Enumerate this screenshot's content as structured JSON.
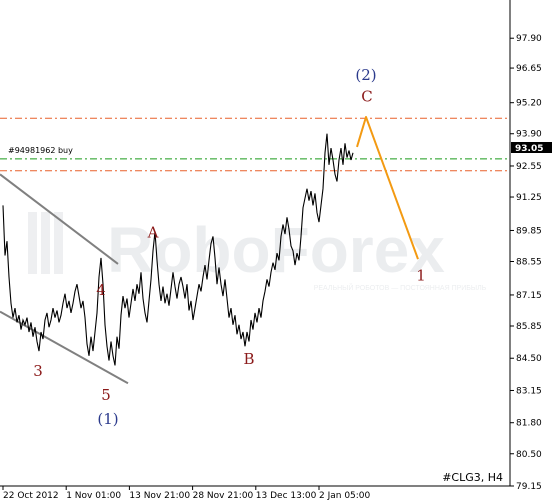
{
  "chart_data": {
    "type": "line",
    "symbol_label": "#CLG3, H4",
    "order_label": "#94981962 buy",
    "current_price": "93.05",
    "watermark": "RoboForex",
    "watermark_sub": "РЕАЛЬНЫЙ РОБОТОВ — ПОСТОЯННАЯ ПРИБЫЛЬ",
    "ylim": [
      79.15,
      99.5
    ],
    "y_ticks": [
      "97.90",
      "96.65",
      "95.20",
      "93.90",
      "92.55",
      "91.25",
      "89.85",
      "88.55",
      "87.15",
      "85.85",
      "84.50",
      "83.15",
      "81.80",
      "80.50",
      "79.15"
    ],
    "x_ticks": [
      "22 Oct 2012",
      "1 Nov 01:00",
      "13 Nov 21:00",
      "28 Nov 21:00",
      "13 Dec 13:00",
      "2 Jan 05:00"
    ],
    "x_range": [
      0,
      515
    ],
    "colors": {
      "price": "#000000",
      "resistance": "#e8612c",
      "order": "#1a9a1a",
      "forecast": "#f39a12",
      "channel": "#808080",
      "wave_small": "#8b1a1a",
      "wave_big": "#2b3a8c",
      "price_box": "#000000"
    },
    "resistance_levels": [
      94.55,
      92.35
    ],
    "order_level": 92.85,
    "channel": [
      {
        "from": [
          0,
          92.2
        ],
        "to": [
          118,
          88.45
        ]
      },
      {
        "from": [
          0,
          86.45
        ],
        "to": [
          128,
          83.45
        ]
      }
    ],
    "forecast_path": [
      [
        357,
        93.35
      ],
      [
        366,
        94.6
      ],
      [
        418,
        88.65
      ]
    ],
    "price_series": [
      [
        3,
        90.9
      ],
      [
        5,
        88.8
      ],
      [
        7,
        89.4
      ],
      [
        9,
        87.9
      ],
      [
        11,
        86.8
      ],
      [
        13,
        86.2
      ],
      [
        15,
        86.6
      ],
      [
        17,
        86.0
      ],
      [
        19,
        86.3
      ],
      [
        21,
        85.7
      ],
      [
        23,
        86.1
      ],
      [
        25,
        85.9
      ],
      [
        27,
        86.2
      ],
      [
        29,
        85.6
      ],
      [
        31,
        86.0
      ],
      [
        33,
        85.4
      ],
      [
        35,
        85.8
      ],
      [
        37,
        85.2
      ],
      [
        39,
        84.8
      ],
      [
        41,
        85.6
      ],
      [
        43,
        85.3
      ],
      [
        45,
        86.1
      ],
      [
        47,
        86.4
      ],
      [
        49,
        85.8
      ],
      [
        51,
        86.1
      ],
      [
        53,
        86.6
      ],
      [
        55,
        86.2
      ],
      [
        57,
        86.5
      ],
      [
        59,
        86.0
      ],
      [
        61,
        86.3
      ],
      [
        63,
        86.8
      ],
      [
        65,
        87.2
      ],
      [
        67,
        86.6
      ],
      [
        69,
        86.9
      ],
      [
        71,
        86.4
      ],
      [
        73,
        86.8
      ],
      [
        75,
        87.3
      ],
      [
        77,
        87.6
      ],
      [
        79,
        87.1
      ],
      [
        81,
        86.6
      ],
      [
        83,
        86.9
      ],
      [
        85,
        86.2
      ],
      [
        87,
        85.1
      ],
      [
        89,
        84.6
      ],
      [
        91,
        85.4
      ],
      [
        93,
        84.8
      ],
      [
        95,
        85.6
      ],
      [
        97,
        86.4
      ],
      [
        99,
        87.9
      ],
      [
        101,
        88.7
      ],
      [
        103,
        87.6
      ],
      [
        105,
        85.9
      ],
      [
        107,
        85.0
      ],
      [
        109,
        84.4
      ],
      [
        111,
        85.2
      ],
      [
        113,
        84.6
      ],
      [
        115,
        84.2
      ],
      [
        117,
        85.4
      ],
      [
        119,
        84.9
      ],
      [
        121,
        86.3
      ],
      [
        123,
        87.1
      ],
      [
        125,
        86.6
      ],
      [
        127,
        87.0
      ],
      [
        129,
        86.2
      ],
      [
        131,
        86.8
      ],
      [
        133,
        87.4
      ],
      [
        135,
        86.9
      ],
      [
        137,
        87.6
      ],
      [
        139,
        87.2
      ],
      [
        141,
        88.1
      ],
      [
        143,
        87.0
      ],
      [
        145,
        86.4
      ],
      [
        147,
        86.0
      ],
      [
        149,
        86.9
      ],
      [
        151,
        87.8
      ],
      [
        153,
        89.0
      ],
      [
        155,
        89.8
      ],
      [
        157,
        88.6
      ],
      [
        159,
        87.6
      ],
      [
        161,
        86.9
      ],
      [
        163,
        87.5
      ],
      [
        165,
        86.8
      ],
      [
        167,
        87.2
      ],
      [
        169,
        86.7
      ],
      [
        171,
        87.4
      ],
      [
        173,
        88.1
      ],
      [
        175,
        87.5
      ],
      [
        177,
        87.0
      ],
      [
        179,
        87.6
      ],
      [
        181,
        87.9
      ],
      [
        183,
        87.5
      ],
      [
        185,
        87.0
      ],
      [
        187,
        87.6
      ],
      [
        189,
        86.5
      ],
      [
        191,
        86.9
      ],
      [
        193,
        86.1
      ],
      [
        195,
        86.6
      ],
      [
        197,
        87.1
      ],
      [
        199,
        87.6
      ],
      [
        201,
        87.3
      ],
      [
        203,
        87.9
      ],
      [
        205,
        88.4
      ],
      [
        207,
        87.8
      ],
      [
        209,
        88.6
      ],
      [
        211,
        89.3
      ],
      [
        213,
        89.6
      ],
      [
        215,
        88.7
      ],
      [
        217,
        87.6
      ],
      [
        219,
        88.3
      ],
      [
        221,
        87.6
      ],
      [
        223,
        87.1
      ],
      [
        225,
        87.8
      ],
      [
        227,
        87.0
      ],
      [
        229,
        86.2
      ],
      [
        231,
        86.6
      ],
      [
        233,
        85.9
      ],
      [
        235,
        86.3
      ],
      [
        237,
        85.5
      ],
      [
        239,
        85.9
      ],
      [
        241,
        85.3
      ],
      [
        243,
        85.6
      ],
      [
        245,
        85.0
      ],
      [
        247,
        85.6
      ],
      [
        249,
        85.2
      ],
      [
        251,
        86.1
      ],
      [
        253,
        85.7
      ],
      [
        255,
        86.4
      ],
      [
        257,
        86.0
      ],
      [
        259,
        86.6
      ],
      [
        261,
        86.2
      ],
      [
        263,
        86.9
      ],
      [
        265,
        87.3
      ],
      [
        267,
        87.8
      ],
      [
        269,
        87.5
      ],
      [
        271,
        88.1
      ],
      [
        273,
        88.5
      ],
      [
        275,
        88.2
      ],
      [
        277,
        88.9
      ],
      [
        279,
        88.6
      ],
      [
        281,
        89.6
      ],
      [
        283,
        90.1
      ],
      [
        285,
        89.7
      ],
      [
        287,
        90.4
      ],
      [
        289,
        89.9
      ],
      [
        291,
        89.2
      ],
      [
        293,
        89.0
      ],
      [
        295,
        88.4
      ],
      [
        297,
        88.9
      ],
      [
        299,
        88.6
      ],
      [
        301,
        89.6
      ],
      [
        303,
        90.8
      ],
      [
        305,
        91.2
      ],
      [
        307,
        91.6
      ],
      [
        309,
        91.1
      ],
      [
        311,
        91.5
      ],
      [
        313,
        90.9
      ],
      [
        315,
        91.4
      ],
      [
        317,
        90.6
      ],
      [
        319,
        90.2
      ],
      [
        321,
        90.9
      ],
      [
        323,
        91.6
      ],
      [
        325,
        93.1
      ],
      [
        327,
        93.9
      ],
      [
        329,
        92.6
      ],
      [
        331,
        93.3
      ],
      [
        333,
        92.8
      ],
      [
        335,
        92.2
      ],
      [
        337,
        91.9
      ],
      [
        339,
        92.8
      ],
      [
        341,
        93.3
      ],
      [
        343,
        92.6
      ],
      [
        345,
        93.5
      ],
      [
        347,
        92.9
      ],
      [
        349,
        93.2
      ],
      [
        351,
        92.8
      ],
      [
        353,
        93.1
      ]
    ],
    "wave_labels": [
      {
        "text": "4",
        "x": 101,
        "y": 87.15,
        "tier": "small"
      },
      {
        "text": "A",
        "x": 153,
        "y": 89.55,
        "tier": "small"
      },
      {
        "text": "3",
        "x": 38,
        "y": 83.75,
        "tier": "small"
      },
      {
        "text": "5",
        "x": 106,
        "y": 82.75,
        "tier": "small"
      },
      {
        "text": "B",
        "x": 249,
        "y": 84.25,
        "tier": "small"
      },
      {
        "text": "C",
        "x": 367,
        "y": 95.25,
        "tier": "small"
      },
      {
        "text": "1",
        "x": 421,
        "y": 87.75,
        "tier": "small"
      },
      {
        "text": "(1)",
        "x": 108,
        "y": 81.75,
        "tier": "big"
      },
      {
        "text": "(2)",
        "x": 366,
        "y": 96.15,
        "tier": "big"
      }
    ]
  }
}
